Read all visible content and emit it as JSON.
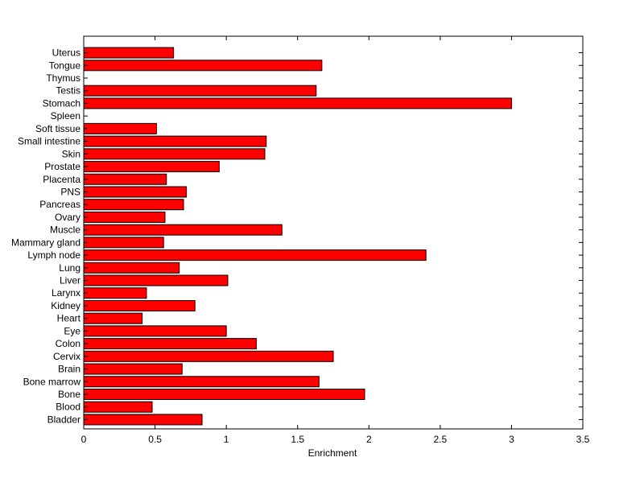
{
  "chart_data": {
    "type": "bar",
    "orientation": "horizontal",
    "title": "",
    "xlabel": "Enrichment",
    "ylabel": "",
    "xlim": [
      0,
      3.5
    ],
    "xticks": [
      0,
      0.5,
      1,
      1.5,
      2,
      2.5,
      3,
      3.5
    ],
    "xtick_labels": [
      "0",
      "0.5",
      "1",
      "1.5",
      "2",
      "2.5",
      "3",
      "3.5"
    ],
    "grid": false,
    "bar_color": "#ff0000",
    "categories": [
      "Bladder",
      "Blood",
      "Bone",
      "Bone marrow",
      "Brain",
      "Cervix",
      "Colon",
      "Eye",
      "Heart",
      "Kidney",
      "Larynx",
      "Liver",
      "Lung",
      "Lymph node",
      "Mammary gland",
      "Muscle",
      "Ovary",
      "Pancreas",
      "PNS",
      "Placenta",
      "Prostate",
      "Skin",
      "Small intestine",
      "Soft tissue",
      "Spleen",
      "Stomach",
      "Testis",
      "Thymus",
      "Tongue",
      "Uterus"
    ],
    "values": [
      0.83,
      0.48,
      1.97,
      1.65,
      0.69,
      1.75,
      1.21,
      1.0,
      0.41,
      0.78,
      0.44,
      1.01,
      0.67,
      2.4,
      0.56,
      1.39,
      0.57,
      0.7,
      0.72,
      0.58,
      0.95,
      1.27,
      1.28,
      0.51,
      0,
      3.0,
      1.63,
      0,
      1.67,
      0.63
    ]
  }
}
